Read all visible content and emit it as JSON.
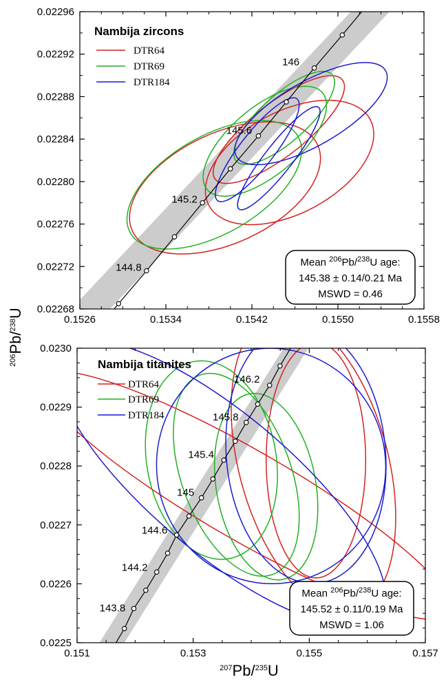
{
  "axis_label_x": {
    "sup1": "207",
    "base1": "Pb/",
    "sup2": "235",
    "base2": "U"
  },
  "axis_label_y": {
    "sup1": "206",
    "base1": "Pb/",
    "sup2": "238",
    "base2": "U"
  },
  "chart_data": [
    {
      "type": "scatter",
      "title": "Nambija zircons",
      "xlim": [
        0.1526,
        0.1558
      ],
      "ylim": [
        0.02268,
        0.02296
      ],
      "x_ticks": [
        "0.1526",
        "0.1534",
        "0.1542",
        "0.1550",
        "0.1558"
      ],
      "y_ticks": [
        "0.02268",
        "0.02272",
        "0.02276",
        "0.02280",
        "0.02284",
        "0.02288",
        "0.02292",
        "0.02296"
      ],
      "legend": [
        {
          "label": "DTR64",
          "color": "#d42020"
        },
        {
          "label": "DTR69",
          "color": "#20b020"
        },
        {
          "label": "DTR184",
          "color": "#1a1ad0"
        }
      ],
      "concordia_points": [
        [
          0.15296,
          0.022685
        ],
        [
          0.15322,
          0.022716
        ],
        [
          0.15348,
          0.022748
        ],
        [
          0.15374,
          0.02278
        ],
        [
          0.154,
          0.022812
        ],
        [
          0.15426,
          0.022843
        ],
        [
          0.15452,
          0.022875
        ],
        [
          0.15478,
          0.022907
        ],
        [
          0.15504,
          0.022938
        ]
      ],
      "concordia_labels": [
        {
          "text": "144.8",
          "x": 0.15322,
          "y": 0.022716
        },
        {
          "text": "145.2",
          "x": 0.15374,
          "y": 0.02278
        },
        {
          "text": "145.6",
          "x": 0.15426,
          "y": 0.022843
        },
        {
          "text": "146",
          "x": 0.15478,
          "y": 0.022907
        }
      ],
      "band": {
        "x0": 0.1527,
        "y0": 0.02268,
        "x1": 0.1553,
        "y1": 0.02296,
        "half_width_x": 0.00018
      },
      "ellipses": [
        {
          "sample": "DTR64",
          "cx": 0.15395,
          "cy": 0.022794,
          "rx": 0.00095,
          "ry": 5.2e-05,
          "rot_deg": -25
        },
        {
          "sample": "DTR64",
          "cx": 0.15455,
          "cy": 0.022818,
          "rx": 0.00085,
          "ry": 4.8e-05,
          "rot_deg": -28
        },
        {
          "sample": "DTR64",
          "cx": 0.15445,
          "cy": 0.022849,
          "rx": 0.00075,
          "ry": 2.5e-05,
          "rot_deg": -38
        },
        {
          "sample": "DTR69",
          "cx": 0.15385,
          "cy": 0.022797,
          "rx": 0.0009,
          "ry": 4.6e-05,
          "rot_deg": -30
        },
        {
          "sample": "DTR69",
          "cx": 0.15432,
          "cy": 0.022838,
          "rx": 0.0007,
          "ry": 3.2e-05,
          "rot_deg": -40
        },
        {
          "sample": "DTR69",
          "cx": 0.1545,
          "cy": 0.02286,
          "rx": 0.0006,
          "ry": 2.2e-05,
          "rot_deg": -42
        },
        {
          "sample": "DTR184",
          "cx": 0.15475,
          "cy": 0.022864,
          "rx": 0.0008,
          "ry": 3e-05,
          "rot_deg": -30
        },
        {
          "sample": "DTR184",
          "cx": 0.15425,
          "cy": 0.02283,
          "rx": 0.0006,
          "ry": 1.6e-05,
          "rot_deg": -52
        },
        {
          "sample": "DTR184",
          "cx": 0.15445,
          "cy": 0.022822,
          "rx": 0.0006,
          "ry": 1.3e-05,
          "rot_deg": -52
        }
      ],
      "mean_box": {
        "line1": "Mean ",
        "sup_a": "206",
        "mid": "Pb/",
        "sup_b": "238",
        "tail": "U age:",
        "line2": "145.38 ± 0.14/0.21 Ma",
        "line3": "MSWD = 0.46"
      }
    },
    {
      "type": "scatter",
      "title": "Nambija titanites",
      "xlim": [
        0.151,
        0.158
      ],
      "ylim": [
        0.0225,
        0.023
      ],
      "x_ticks": [
        "0.151",
        "0.153",
        "0.155",
        "0.157"
      ],
      "y_ticks": [
        "0.0225",
        "0.0226",
        "0.0227",
        "0.0228",
        "0.0229",
        "0.0230"
      ],
      "legend": [
        {
          "label": "DTR64",
          "color": "#d42020"
        },
        {
          "label": "DTR69",
          "color": "#20b020"
        },
        {
          "label": "DTR184",
          "color": "#1a1ad0"
        }
      ],
      "concordia_points": [
        [
          0.15195,
          0.022524
        ],
        [
          0.15214,
          0.022558
        ],
        [
          0.15238,
          0.022589
        ],
        [
          0.1526,
          0.02262
        ],
        [
          0.15282,
          0.022652
        ],
        [
          0.153,
          0.022683
        ],
        [
          0.15325,
          0.022715
        ],
        [
          0.1535,
          0.022746
        ],
        [
          0.15373,
          0.022778
        ],
        [
          0.15395,
          0.02281
        ],
        [
          0.15418,
          0.022842
        ],
        [
          0.1544,
          0.022874
        ],
        [
          0.15463,
          0.022905
        ],
        [
          0.15487,
          0.022937
        ],
        [
          0.15508,
          0.02297
        ]
      ],
      "concordia_labels": [
        {
          "text": "143.8",
          "x": 0.15214,
          "y": 0.022558
        },
        {
          "text": "144.2",
          "x": 0.1526,
          "y": 0.02262
        },
        {
          "text": "144.6",
          "x": 0.153,
          "y": 0.022683
        },
        {
          "text": "145",
          "x": 0.1535,
          "y": 0.022746
        },
        {
          "text": "145.4",
          "x": 0.15395,
          "y": 0.02281
        },
        {
          "text": "145.8",
          "x": 0.1544,
          "y": 0.022874
        },
        {
          "text": "146.2",
          "x": 0.15487,
          "y": 0.022937
        }
      ],
      "band": {
        "x0": 0.1517,
        "y0": 0.0225,
        "x1": 0.1554,
        "y1": 0.023,
        "half_width_x": 0.00025
      },
      "ellipses": [
        {
          "sample": "DTR64",
          "cx": 0.1544,
          "cy": 0.02275,
          "rx": 0.0009,
          "ry": 0.0004,
          "rot_deg": -60
        },
        {
          "sample": "DTR64",
          "cx": 0.15575,
          "cy": 0.022805,
          "rx": 0.0015,
          "ry": 0.00026,
          "rot_deg": -15
        },
        {
          "sample": "DTR64",
          "cx": 0.1558,
          "cy": 0.02281,
          "rx": 0.001,
          "ry": 0.0002,
          "rot_deg": 0
        },
        {
          "sample": "DTR69",
          "cx": 0.1537,
          "cy": 0.02281,
          "rx": 0.0013,
          "ry": 0.00017,
          "rot_deg": -10
        },
        {
          "sample": "DTR69",
          "cx": 0.1542,
          "cy": 0.022785,
          "rx": 0.0011,
          "ry": 0.00018,
          "rot_deg": -20
        },
        {
          "sample": "DTR69",
          "cx": 0.1548,
          "cy": 0.022765,
          "rx": 0.001,
          "ry": 0.00016,
          "rot_deg": -10
        },
        {
          "sample": "DTR184",
          "cx": 0.1549,
          "cy": 0.0228,
          "rx": 0.0023,
          "ry": 0.0002,
          "rot_deg": -10
        },
        {
          "sample": "DTR184",
          "cx": 0.1539,
          "cy": 0.02277,
          "rx": 0.0014,
          "ry": 0.00035,
          "rot_deg": -50
        },
        {
          "sample": "DTR184",
          "cx": 0.1556,
          "cy": 0.02282,
          "rx": 0.0016,
          "ry": 0.00022,
          "rot_deg": -5
        }
      ],
      "mean_box": {
        "line1": "Mean ",
        "sup_a": "206",
        "mid": "Pb/",
        "sup_b": "238",
        "tail": "U age:",
        "line2": "145.52 ± 0.11/0.19 Ma",
        "line3": "MSWD = 1.06"
      }
    }
  ]
}
